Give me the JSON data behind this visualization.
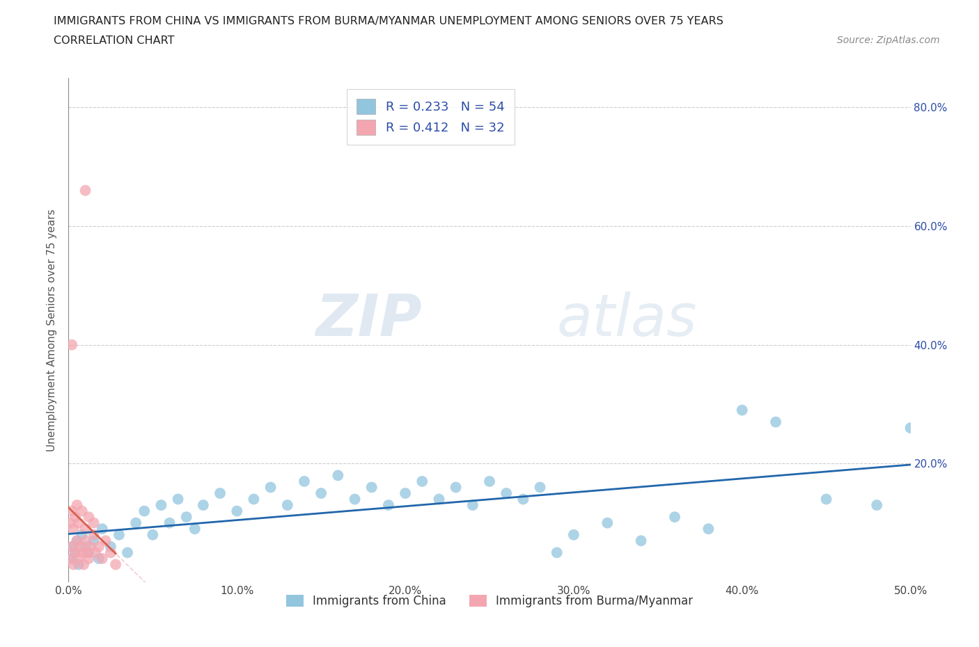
{
  "title_line1": "IMMIGRANTS FROM CHINA VS IMMIGRANTS FROM BURMA/MYANMAR UNEMPLOYMENT AMONG SENIORS OVER 75 YEARS",
  "title_line2": "CORRELATION CHART",
  "source_text": "Source: ZipAtlas.com",
  "ylabel": "Unemployment Among Seniors over 75 years",
  "xlim": [
    0.0,
    0.5
  ],
  "ylim": [
    0.0,
    0.85
  ],
  "xticks": [
    0.0,
    0.1,
    0.2,
    0.3,
    0.4,
    0.5
  ],
  "xticklabels": [
    "0.0%",
    "10.0%",
    "20.0%",
    "30.0%",
    "40.0%",
    "50.0%"
  ],
  "yticks": [
    0.0,
    0.2,
    0.4,
    0.6,
    0.8
  ],
  "right_yticklabels": [
    "",
    "20.0%",
    "40.0%",
    "60.0%",
    "80.0%"
  ],
  "china_color": "#92c5de",
  "china_line_color": "#2166ac",
  "burma_color": "#f4a6b0",
  "burma_line_color": "#d6604d",
  "burma_line_dashed_color": "#f4a6b0",
  "china_R": 0.233,
  "china_N": 54,
  "burma_R": 0.412,
  "burma_N": 32,
  "legend_text_color": "#2b4ca8",
  "watermark_zip": "ZIP",
  "watermark_atlas": "atlas",
  "background_color": "#ffffff",
  "grid_color": "#cccccc",
  "title_color": "#222222",
  "axis_label_color": "#555555",
  "china_scatter_x": [
    0.002,
    0.003,
    0.004,
    0.005,
    0.006,
    0.008,
    0.01,
    0.012,
    0.015,
    0.018,
    0.02,
    0.025,
    0.03,
    0.035,
    0.04,
    0.045,
    0.05,
    0.055,
    0.06,
    0.065,
    0.07,
    0.075,
    0.08,
    0.09,
    0.1,
    0.11,
    0.12,
    0.13,
    0.14,
    0.15,
    0.16,
    0.17,
    0.18,
    0.19,
    0.2,
    0.21,
    0.22,
    0.23,
    0.24,
    0.25,
    0.26,
    0.27,
    0.28,
    0.29,
    0.3,
    0.32,
    0.34,
    0.36,
    0.38,
    0.4,
    0.42,
    0.45,
    0.48,
    0.5
  ],
  "china_scatter_y": [
    0.04,
    0.06,
    0.05,
    0.07,
    0.03,
    0.08,
    0.06,
    0.05,
    0.07,
    0.04,
    0.09,
    0.06,
    0.08,
    0.05,
    0.1,
    0.12,
    0.08,
    0.13,
    0.1,
    0.14,
    0.11,
    0.09,
    0.13,
    0.15,
    0.12,
    0.14,
    0.16,
    0.13,
    0.17,
    0.15,
    0.18,
    0.14,
    0.16,
    0.13,
    0.15,
    0.17,
    0.14,
    0.16,
    0.13,
    0.17,
    0.15,
    0.14,
    0.16,
    0.05,
    0.08,
    0.1,
    0.07,
    0.11,
    0.09,
    0.29,
    0.27,
    0.14,
    0.13,
    0.26
  ],
  "burma_scatter_x": [
    0.001,
    0.002,
    0.003,
    0.004,
    0.005,
    0.006,
    0.007,
    0.008,
    0.009,
    0.01,
    0.011,
    0.012,
    0.013,
    0.015,
    0.016,
    0.018,
    0.02,
    0.022,
    0.025,
    0.028,
    0.001,
    0.002,
    0.003,
    0.004,
    0.005,
    0.006,
    0.008,
    0.01,
    0.012,
    0.015,
    0.01,
    0.002
  ],
  "burma_scatter_y": [
    0.04,
    0.06,
    0.03,
    0.05,
    0.07,
    0.04,
    0.06,
    0.05,
    0.03,
    0.07,
    0.05,
    0.04,
    0.06,
    0.08,
    0.05,
    0.06,
    0.04,
    0.07,
    0.05,
    0.03,
    0.1,
    0.12,
    0.09,
    0.11,
    0.13,
    0.1,
    0.12,
    0.09,
    0.11,
    0.1,
    0.66,
    0.4
  ],
  "china_legend_label": "Immigrants from China",
  "burma_legend_label": "Immigrants from Burma/Myanmar"
}
